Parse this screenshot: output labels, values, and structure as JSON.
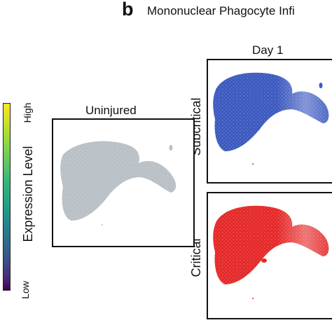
{
  "panel": {
    "letter": "b",
    "title": "Mononuclear Phagocyte Infi"
  },
  "colorbar": {
    "title": "Expression Level",
    "high_label": "High",
    "low_label": "Low",
    "colormap": "viridis"
  },
  "columns": {
    "uninjured_title": "Uninjured",
    "day_title": "Day 1"
  },
  "rows": {
    "subcritical_label": "Subcritical",
    "critical_label": "Critical"
  },
  "colors": {
    "uninjured_cells": "#b9c0c6",
    "subcritical_cells": "#3d5ac0",
    "critical_cells": "#e52a2a",
    "frame": "#111111"
  }
}
